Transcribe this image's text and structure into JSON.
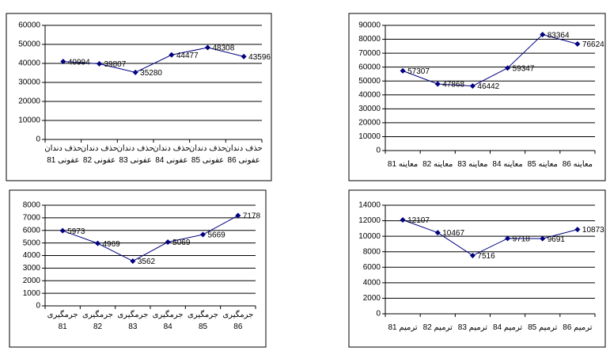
{
  "chart_data": [
    {
      "type": "line",
      "categories": [
        "حذف دندان عفونی 81",
        "حذف دندان عفونی 82",
        "حذف دندان عفونی 83",
        "حذف دندان عفونی 84",
        "حذف دندان عفونی 85",
        "حذف دندان عفونی 86"
      ],
      "values": [
        40994,
        39807,
        35280,
        44477,
        48308,
        43596
      ],
      "color": "#000080",
      "ylim": [
        0,
        60000
      ],
      "yticks": [
        0,
        10000,
        20000,
        30000,
        40000,
        50000,
        60000
      ],
      "grid": true
    },
    {
      "type": "line",
      "categories": [
        "معاینه 81",
        "معاینه 82",
        "معاینه 83",
        "معاینه 84",
        "معاینه 85",
        "معاینه 86"
      ],
      "values": [
        57307,
        47868,
        46442,
        59347,
        83364,
        76624
      ],
      "color": "#000080",
      "ylim": [
        0,
        90000
      ],
      "yticks": [
        0,
        10000,
        20000,
        30000,
        40000,
        50000,
        60000,
        70000,
        80000,
        90000
      ],
      "grid": true
    },
    {
      "type": "line",
      "categories": [
        "جرمگیری 81",
        "جرمگیری 82",
        "جرمگیری 83",
        "جرمگیری 84",
        "جرمگیری 85",
        "جرمگیری 86"
      ],
      "values": [
        5973,
        4969,
        3562,
        5069,
        5669,
        7178
      ],
      "color": "#000080",
      "ylim": [
        0,
        8000
      ],
      "yticks": [
        0,
        1000,
        2000,
        3000,
        4000,
        5000,
        6000,
        7000,
        8000
      ],
      "grid": true
    },
    {
      "type": "line",
      "categories": [
        "ترمیم 81",
        "ترمیم 82",
        "ترمیم 83",
        "ترمیم 84",
        "ترمیم 85",
        "ترمیم 86"
      ],
      "values": [
        12107,
        10467,
        7516,
        9718,
        9691,
        10873
      ],
      "color": "#000080",
      "ylim": [
        0,
        14000
      ],
      "yticks": [
        0,
        2000,
        4000,
        6000,
        8000,
        10000,
        12000,
        14000
      ],
      "grid": true
    }
  ]
}
